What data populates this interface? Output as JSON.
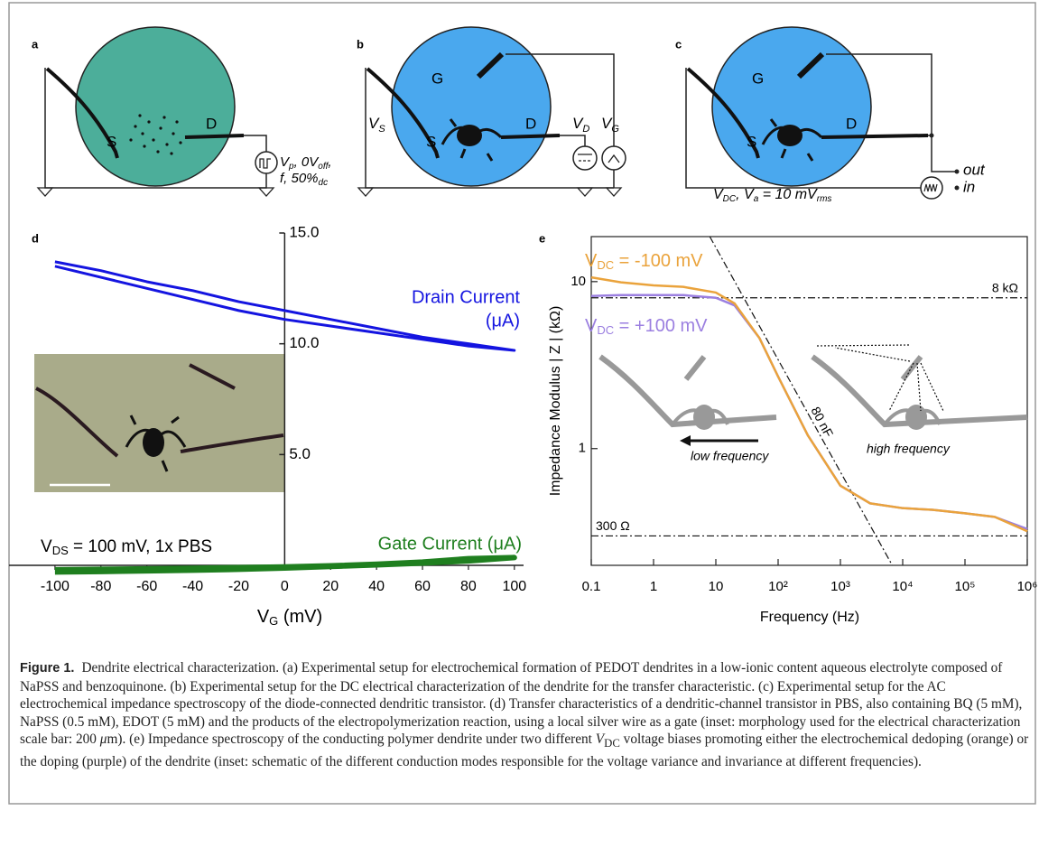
{
  "diagrams": {
    "a": {
      "label": "a",
      "source": "S",
      "drain": "D",
      "pulse": [
        [
          "V",
          "p",
          ", 0V",
          "off",
          ","
        ],
        [
          "f, 50%",
          "dc"
        ]
      ]
    },
    "b": {
      "label": "b",
      "gate": "G",
      "source": "S",
      "drain": "D",
      "vs": [
        "V",
        "S"
      ],
      "vd": [
        "V",
        "D"
      ],
      "vg": [
        "V",
        "G"
      ]
    },
    "c": {
      "label": "c",
      "gate": "G",
      "source": "S",
      "drain": "D",
      "out": "out",
      "in": "in",
      "bias": [
        "V",
        "DC",
        ", V",
        "a",
        " = 10 mV",
        "rms"
      ]
    }
  },
  "chart_data": [
    {
      "type": "line",
      "label": "d",
      "xlabel": [
        "V",
        "G",
        " (mV)"
      ],
      "xlim": [
        -120,
        104
      ],
      "ylim": [
        0,
        15
      ],
      "xticks": [
        -100,
        -80,
        -60,
        -40,
        -20,
        0,
        20,
        40,
        60,
        80,
        100
      ],
      "yticks": [
        {
          "value": 5,
          "label": "5.0"
        },
        {
          "value": 10,
          "label": "10.0"
        },
        {
          "value": 15,
          "label": "15.0"
        }
      ],
      "annotation": [
        "V",
        "DS",
        " = 100 mV, 1x PBS"
      ],
      "series": [
        {
          "name": [
            "Drain Current",
            "(μA)"
          ],
          "color": "#1414e0",
          "x": [
            -100,
            -80,
            -60,
            -40,
            -20,
            0,
            20,
            40,
            60,
            80,
            100,
            80,
            60,
            40,
            20,
            0,
            -20,
            -40,
            -60,
            -80,
            -100
          ],
          "values": [
            13.7,
            13.3,
            12.8,
            12.4,
            11.9,
            11.5,
            11.1,
            10.7,
            10.3,
            10.0,
            9.7,
            9.9,
            10.2,
            10.5,
            10.8,
            11.1,
            11.5,
            12.0,
            12.5,
            13.0,
            13.5
          ]
        },
        {
          "name": "Gate Current (μA)",
          "color": "#1f7f1f",
          "x": [
            -100,
            -80,
            -60,
            -40,
            -20,
            0,
            20,
            40,
            60,
            80,
            100,
            80,
            60,
            40,
            20,
            0,
            -20,
            -40,
            -60,
            -80,
            -100
          ],
          "values": [
            -0.3,
            -0.28,
            -0.25,
            -0.22,
            -0.18,
            -0.12,
            -0.05,
            0.02,
            0.1,
            0.2,
            0.35,
            0.3,
            0.15,
            0.05,
            -0.02,
            -0.07,
            -0.1,
            -0.13,
            -0.16,
            -0.18,
            -0.2
          ]
        }
      ]
    },
    {
      "type": "line",
      "label": "e",
      "log_x": true,
      "log_y": true,
      "xlabel": "Frequency (Hz)",
      "ylabel": "Impedance Modulus | Z | (kΩ)",
      "xlim": [
        0.1,
        1000000
      ],
      "ylim": [
        0.2,
        18.6
      ],
      "xticks": [
        0.1,
        1,
        10,
        {
          "value": 100,
          "label": "10²"
        },
        {
          "value": 1000,
          "label": "10³"
        },
        {
          "value": 10000,
          "label": "10⁴"
        },
        {
          "value": 100000,
          "label": "10⁵"
        },
        {
          "value": 1000000,
          "label": "10⁶"
        }
      ],
      "yticks": [
        1,
        10
      ],
      "series": [
        {
          "name": [
            "V",
            "DC",
            " = +100 mV"
          ],
          "color": "#9b7fe0",
          "x": [
            0.1,
            0.3,
            1,
            3,
            10,
            20,
            50,
            100,
            300,
            1000,
            3000,
            10000,
            30000,
            100000,
            300000,
            1000000
          ],
          "values": [
            8.2,
            8.3,
            8.3,
            8.3,
            8.0,
            7.2,
            4.6,
            2.7,
            1.2,
            0.6,
            0.47,
            0.44,
            0.43,
            0.41,
            0.39,
            0.33
          ]
        },
        {
          "name": [
            "V",
            "DC",
            " = -100 mV"
          ],
          "color": "#eaa33c",
          "x": [
            0.1,
            0.3,
            1,
            3,
            10,
            20,
            50,
            100,
            300,
            1000,
            3000,
            10000,
            30000,
            100000,
            300000,
            1000000
          ],
          "values": [
            10.6,
            9.9,
            9.5,
            9.3,
            8.6,
            7.4,
            4.6,
            2.7,
            1.2,
            0.6,
            0.47,
            0.44,
            0.43,
            0.41,
            0.39,
            0.32
          ]
        }
      ],
      "reference_lines": [
        {
          "label": "8 kΩ",
          "value": 8
        },
        {
          "label": "300 Ω",
          "value": 0.3
        }
      ],
      "slope_line": {
        "label": "80 nF",
        "x": [
          8,
          6800
        ],
        "values": [
          18.6,
          0.2
        ]
      },
      "inset_labels": [
        "low frequency",
        "high frequency"
      ]
    }
  ],
  "caption": {
    "label": "Figure 1.",
    "body": [
      "Dendrite electrical characterization. (a) Experimental setup for electrochemical formation of PEDOT dendrites in a low-ionic content aqueous electrolyte composed of NaPSS and benzoquinone. (b) Experimental setup for the DC electrical characterization of the dendrite for the transfer characteristic. (c) Experimental setup for the AC electrochemical impedance spectroscopy of the diode-connected dendritic transistor. (d) Transfer characteristics of a dendritic-channel transistor in PBS, also containing BQ (5 mM), NaPSS (0.5 mM), EDOT (5 mM) and the products of the electropolymerization reaction, using a local silver wire as a gate (inset: morphology used for the electrical characterization scale bar: 200 ",
      "μ",
      "m). (e) Impedance spectroscopy of the conducting polymer dendrite under two different ",
      "V",
      "DC",
      " voltage biases promoting either the electrochemical dedoping (orange) or the doping (purple) of the dendrite (inset: schematic of the different conduction modes responsible for the voltage variance and invariance at different frequencies)."
    ]
  }
}
